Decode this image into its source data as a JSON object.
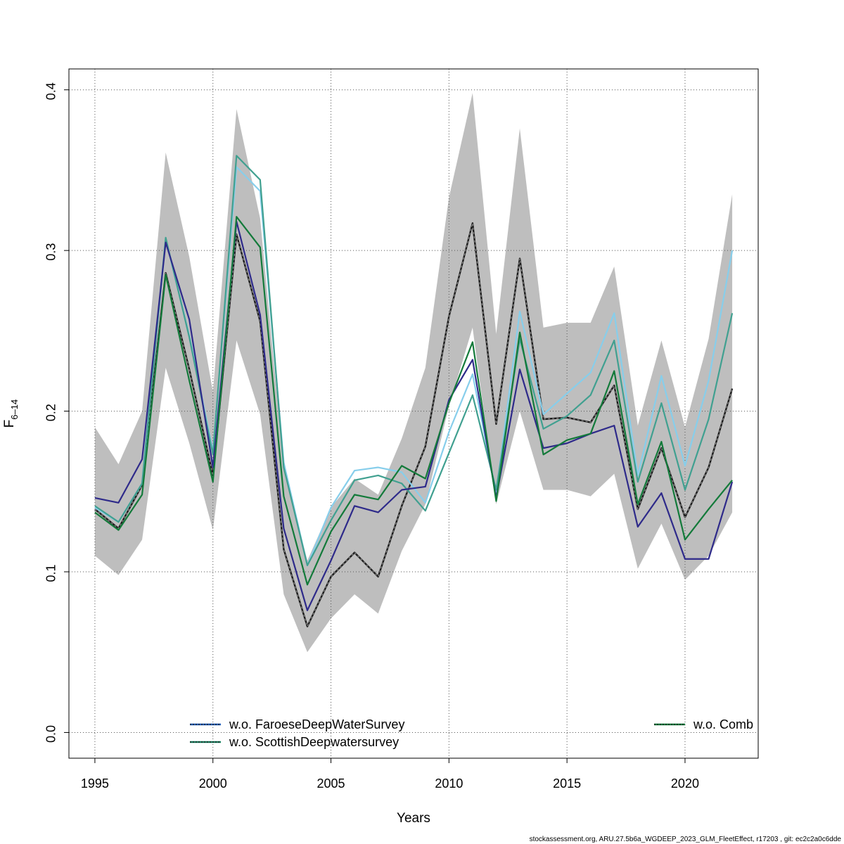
{
  "chart_data": {
    "type": "line",
    "xlabel": "Years",
    "ylabel": "F",
    "ylabel_subscript": "6–14",
    "xlim": [
      1993.9,
      2023.1
    ],
    "ylim": [
      -0.016,
      0.413
    ],
    "x_ticks": [
      1995,
      2000,
      2005,
      2010,
      2015,
      2020
    ],
    "x_tick_labels": [
      "1995",
      "2000",
      "2005",
      "2010",
      "2015",
      "2020"
    ],
    "y_ticks": [
      0.0,
      0.1,
      0.2,
      0.3,
      0.4
    ],
    "y_tick_labels": [
      "0.0",
      "0.1",
      "0.2",
      "0.3",
      "0.4"
    ],
    "grid": true,
    "x": [
      1995,
      1996,
      1997,
      1998,
      1999,
      2000,
      2001,
      2002,
      2003,
      2004,
      2005,
      2006,
      2007,
      2008,
      2009,
      2010,
      2011,
      2012,
      2013,
      2014,
      2015,
      2016,
      2017,
      2018,
      2019,
      2020,
      2021,
      2022
    ],
    "band": {
      "color": "#bebebe",
      "lower": [
        0.11,
        0.098,
        0.12,
        0.227,
        0.18,
        0.126,
        0.244,
        0.198,
        0.086,
        0.05,
        0.071,
        0.086,
        0.074,
        0.113,
        0.142,
        0.203,
        0.252,
        0.142,
        0.2,
        0.151,
        0.151,
        0.147,
        0.161,
        0.102,
        0.13,
        0.095,
        0.11,
        0.137
      ],
      "upper": [
        0.19,
        0.167,
        0.2,
        0.361,
        0.296,
        0.212,
        0.388,
        0.32,
        0.166,
        0.107,
        0.14,
        0.158,
        0.148,
        0.183,
        0.227,
        0.333,
        0.398,
        0.248,
        0.376,
        0.252,
        0.255,
        0.255,
        0.29,
        0.191,
        0.244,
        0.19,
        0.245,
        0.335
      ]
    },
    "series": [
      {
        "role": "reference",
        "color": "#1a1a1a",
        "dash": true,
        "values": [
          0.139,
          0.127,
          0.154,
          0.286,
          0.226,
          0.16,
          0.31,
          0.256,
          0.114,
          0.066,
          0.097,
          0.112,
          0.097,
          0.141,
          0.178,
          0.259,
          0.317,
          0.192,
          0.295,
          0.195,
          0.196,
          0.193,
          0.216,
          0.139,
          0.177,
          0.134,
          0.165,
          0.214
        ]
      },
      {
        "color": "#87ceeb",
        "values": [
          0.14,
          0.131,
          0.155,
          0.307,
          0.247,
          0.175,
          0.352,
          0.337,
          0.168,
          0.104,
          0.14,
          0.163,
          0.165,
          0.162,
          0.143,
          0.187,
          0.223,
          0.149,
          0.262,
          0.198,
          0.211,
          0.224,
          0.261,
          0.16,
          0.222,
          0.166,
          0.219,
          0.3
        ]
      },
      {
        "color": "#40a090",
        "values": [
          0.141,
          0.131,
          0.155,
          0.308,
          0.246,
          0.173,
          0.359,
          0.344,
          0.165,
          0.104,
          0.132,
          0.157,
          0.16,
          0.155,
          0.138,
          0.174,
          0.21,
          0.151,
          0.245,
          0.189,
          0.197,
          0.21,
          0.244,
          0.156,
          0.205,
          0.151,
          0.195,
          0.261
        ]
      },
      {
        "color": "#2e2a8a",
        "values": [
          0.146,
          0.143,
          0.17,
          0.305,
          0.257,
          0.165,
          0.318,
          0.26,
          0.127,
          0.076,
          0.107,
          0.141,
          0.137,
          0.151,
          0.153,
          0.207,
          0.232,
          0.146,
          0.226,
          0.177,
          0.18,
          0.186,
          0.191,
          0.128,
          0.149,
          0.108,
          0.108,
          0.156
        ]
      },
      {
        "name": "w.o. Comb",
        "color": "#137a3a",
        "values": [
          0.137,
          0.126,
          0.148,
          0.285,
          0.219,
          0.156,
          0.321,
          0.302,
          0.147,
          0.092,
          0.125,
          0.148,
          0.145,
          0.166,
          0.158,
          0.205,
          0.243,
          0.144,
          0.249,
          0.173,
          0.182,
          0.186,
          0.225,
          0.142,
          0.181,
          0.12,
          0.139,
          0.157
        ]
      }
    ],
    "legend": [
      {
        "label": "w.o. FaroeseDeepWaterSurvey",
        "color": "#1f5ab4",
        "dash_color": "#1a1a1a"
      },
      {
        "label": "w.o. ScottishDeepwatersurvey",
        "color": "#137a5a",
        "dash_color": "#1a1a1a"
      },
      {
        "label": "w.o. Comb",
        "color": "#137a3a",
        "dash_color": "#1a1a1a"
      }
    ],
    "legend_position": "bottom"
  },
  "footer": "stockassessment.org, ARU.27.5b6a_WGDEEP_2023_GLM_FleetEffect, r17203 , git: ec2c2a0c6dde"
}
